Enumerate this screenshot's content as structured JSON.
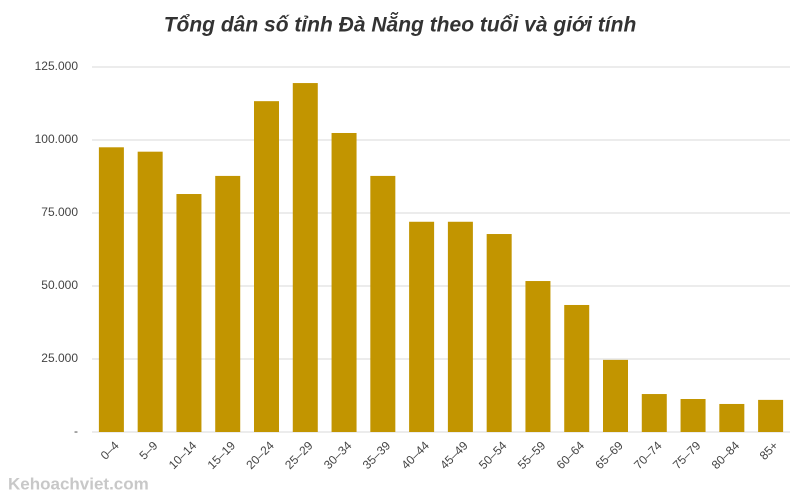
{
  "chart_data": {
    "type": "bar",
    "title": "Tổng dân số tỉnh Đà Nẵng theo tuổi và giới tính",
    "categories": [
      "0–4",
      "5–9",
      "10–14",
      "15–19",
      "20–24",
      "25–29",
      "30–34",
      "35–39",
      "40–44",
      "45–49",
      "50–54",
      "55–59",
      "60–64",
      "65–69",
      "70–74",
      "75–79",
      "80–84",
      "85+"
    ],
    "values": [
      97500,
      96000,
      81500,
      87700,
      113300,
      119500,
      102400,
      87700,
      72000,
      72000,
      67800,
      51700,
      43500,
      24700,
      13000,
      11300,
      9600,
      11000
    ],
    "color": "#c29500",
    "ylim": [
      0,
      125000
    ],
    "yticks": [
      {
        "value": 0,
        "label": "-"
      },
      {
        "value": 25000,
        "label": "25.000"
      },
      {
        "value": 50000,
        "label": "50.000"
      },
      {
        "value": 75000,
        "label": "75.000"
      },
      {
        "value": 100000,
        "label": "100.000"
      },
      {
        "value": 125000,
        "label": "125.000"
      }
    ],
    "grid": true,
    "watermark": "Kehoachviet.com"
  }
}
